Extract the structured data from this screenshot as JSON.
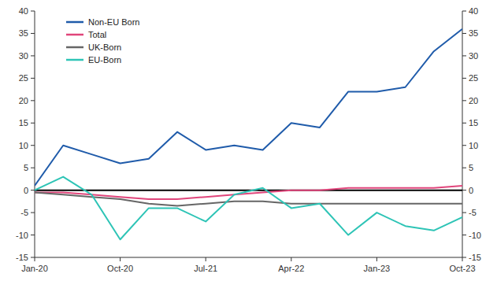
{
  "chart_data": {
    "type": "line",
    "categories": [
      "Jan-20",
      null,
      null,
      "Oct-20",
      null,
      null,
      "Jul-21",
      null,
      null,
      "Apr-22",
      null,
      null,
      "Jan-23",
      null,
      null,
      "Oct-23"
    ],
    "series": [
      {
        "name": "Non-EU Born",
        "color": "#1f5baa",
        "values": [
          1,
          10,
          8,
          6,
          7,
          13,
          9,
          10,
          9,
          15,
          14,
          22,
          22,
          23,
          31,
          36
        ]
      },
      {
        "name": "Total",
        "color": "#e0457b",
        "values": [
          -0.5,
          -0.5,
          -1,
          -1.5,
          -2,
          -2,
          -1.5,
          -1,
          -0.5,
          0,
          0,
          0.5,
          0.5,
          0.5,
          0.5,
          1
        ]
      },
      {
        "name": "UK-Born",
        "color": "#666666",
        "values": [
          -0.5,
          -1,
          -1.5,
          -2,
          -3,
          -3.5,
          -3,
          -2.5,
          -2.5,
          -3,
          -3,
          -3,
          -3,
          -3,
          -3,
          -3
        ]
      },
      {
        "name": "EU-Born",
        "color": "#2ec4b6",
        "values": [
          0,
          3,
          -1,
          -11,
          -4,
          -4,
          -7,
          -1,
          0.5,
          -4,
          -3,
          -10,
          -5,
          -8,
          -9,
          -6
        ]
      }
    ],
    "ylim": [
      -15,
      40
    ],
    "yticks": [
      -15,
      -10,
      -5,
      0,
      5,
      10,
      15,
      20,
      25,
      30,
      35,
      40
    ],
    "y2lim": [
      -15,
      40
    ],
    "y2ticks": [
      -15,
      -10,
      -5,
      0,
      5,
      10,
      15,
      20,
      25,
      30,
      35,
      40
    ],
    "grid": false,
    "legend": "upper left"
  }
}
